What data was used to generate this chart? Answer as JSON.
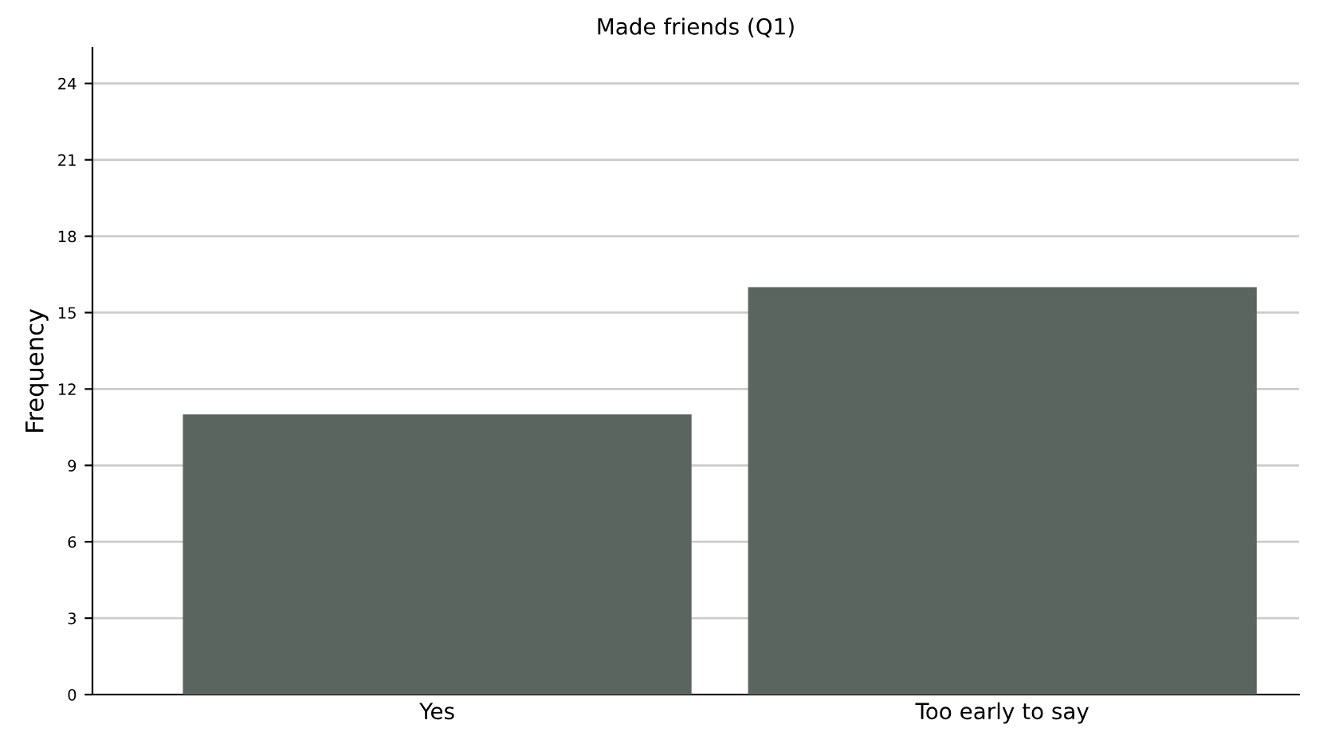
{
  "chart_data": {
    "type": "bar",
    "title": "Made friends (Q1)",
    "ylabel": "Frequency",
    "categories": [
      "Yes",
      "Too early to say"
    ],
    "values": [
      11,
      16
    ],
    "color": "#5b6560",
    "ylim": [
      0,
      25.4
    ],
    "yticks": [
      0,
      3,
      6,
      9,
      12,
      15,
      18,
      21,
      24
    ],
    "grid": "y"
  }
}
